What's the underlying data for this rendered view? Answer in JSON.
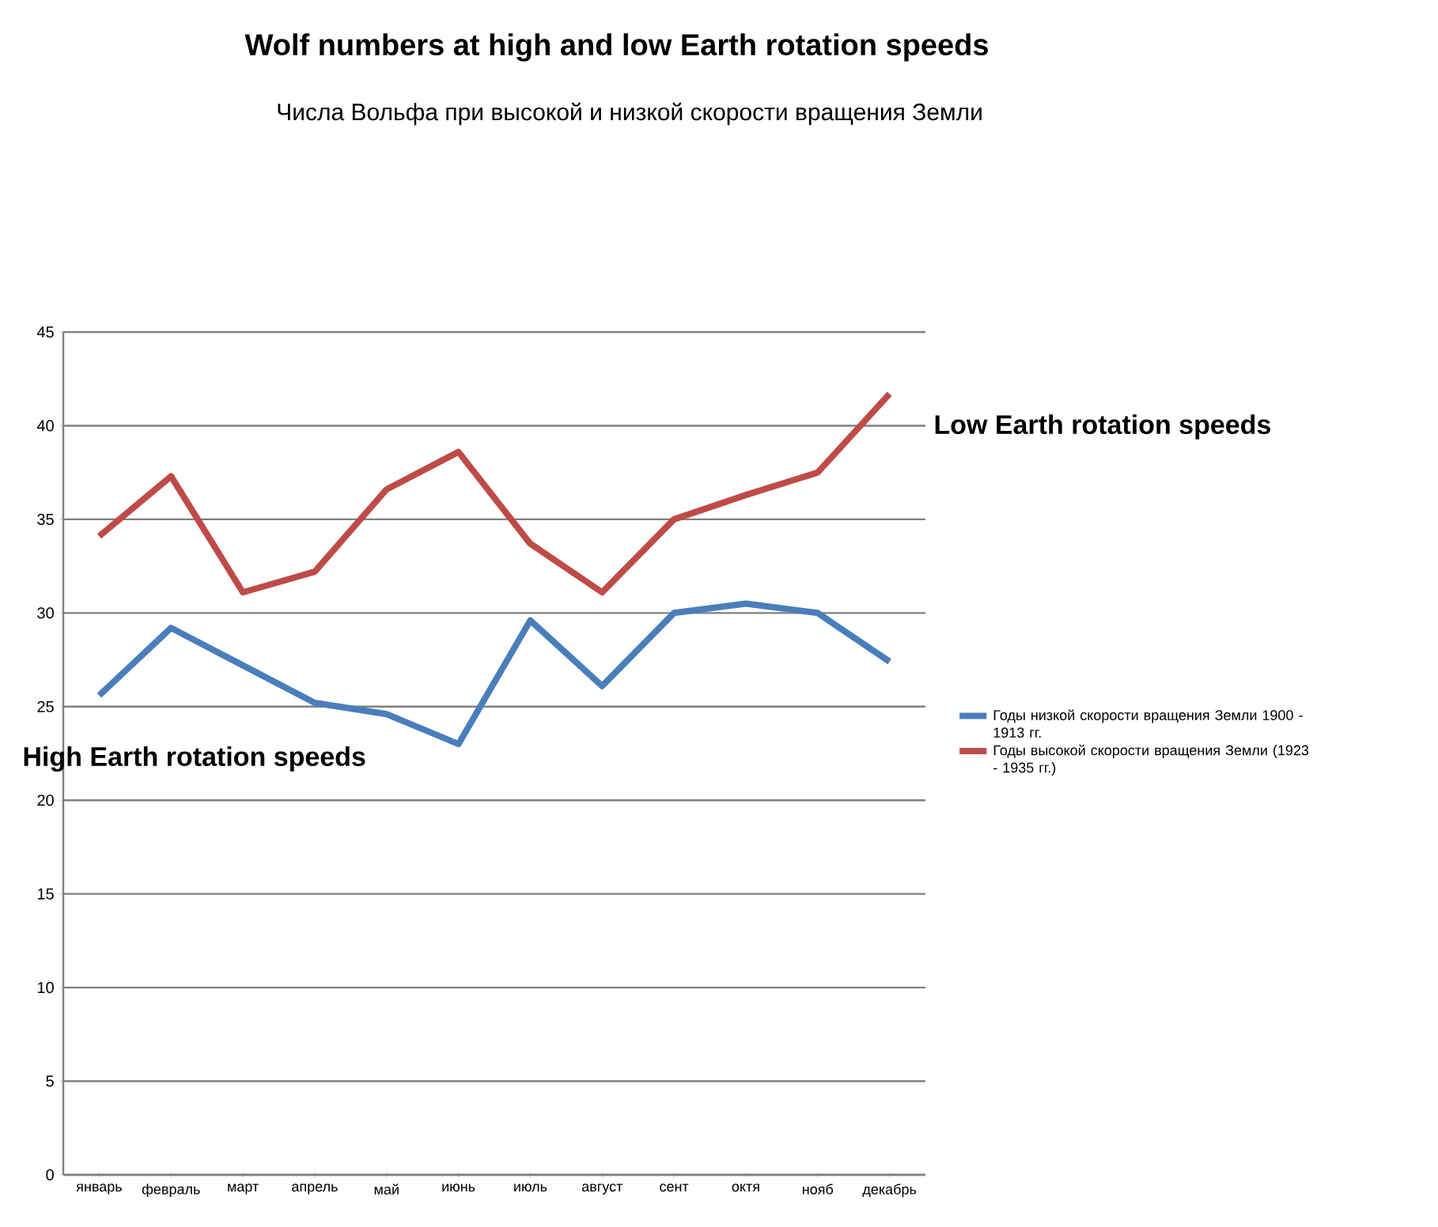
{
  "chart_data": {
    "type": "line",
    "title": "Wolf numbers at high and low Earth rotation speeds",
    "subtitle": "Числа Вольфа при высокой и низкой скорости вращения Земли",
    "categories": [
      "январь",
      "февраль",
      "март",
      "апрель",
      "май",
      "июнь",
      "июль",
      "август",
      "сент",
      "октя",
      "нояб",
      "декабрь"
    ],
    "series": [
      {
        "name": "Годы низкой скорости вращения Земли 1900 - 1913 гг.",
        "color": "#4a7ebb",
        "values": [
          25.6,
          29.2,
          27.2,
          25.2,
          24.6,
          23.0,
          29.6,
          26.1,
          30.0,
          30.5,
          30.0,
          27.4
        ]
      },
      {
        "name": "Годы высокой  скорости вращения Земли (1923 - 1935 гг.)",
        "color": "#be4b48",
        "values": [
          34.1,
          37.3,
          31.1,
          32.2,
          36.6,
          38.6,
          33.7,
          31.1,
          35.0,
          36.3,
          37.5,
          41.7
        ]
      }
    ],
    "ylim": [
      0,
      45
    ],
    "yticks": [
      0,
      5,
      10,
      15,
      20,
      25,
      30,
      35,
      40,
      45
    ],
    "grid": "y",
    "legend": "right",
    "annotations": [
      "Low Earth rotation speeds",
      "High  Earth rotation speeds"
    ]
  }
}
